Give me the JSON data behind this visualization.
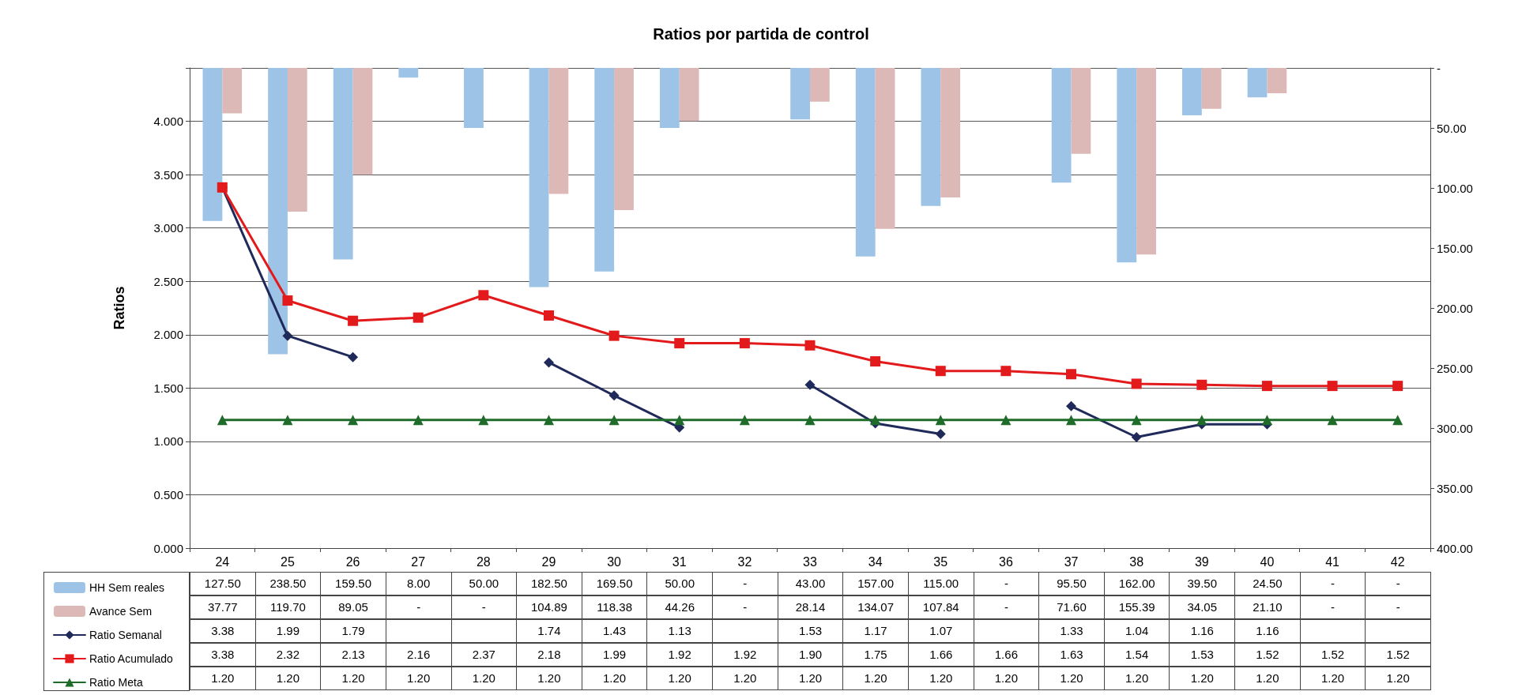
{
  "chart_data": {
    "type": "bar",
    "title": "Ratios por partida de control",
    "ylabel": "Ratios",
    "categories": [
      "24",
      "25",
      "26",
      "27",
      "28",
      "29",
      "30",
      "31",
      "32",
      "33",
      "34",
      "35",
      "36",
      "37",
      "38",
      "39",
      "40",
      "41",
      "42"
    ],
    "ylim": [
      0,
      4.5
    ],
    "yticks": [
      {
        "value": 0,
        "label": "0.000"
      },
      {
        "value": 0.5,
        "label": "0.500"
      },
      {
        "value": 1,
        "label": "1.000"
      },
      {
        "value": 1.5,
        "label": "1.500"
      },
      {
        "value": 2,
        "label": "2.000"
      },
      {
        "value": 2.5,
        "label": "2.500"
      },
      {
        "value": 3,
        "label": "3.000"
      },
      {
        "value": 3.5,
        "label": "3.500"
      },
      {
        "value": 4,
        "label": "4.000"
      },
      {
        "value": 4.5,
        "label": null
      }
    ],
    "y2lim": [
      400,
      0
    ],
    "y2ticks": [
      {
        "value": 0,
        "label": "-"
      },
      {
        "value": 50,
        "label": "50.00"
      },
      {
        "value": 100,
        "label": "100.00"
      },
      {
        "value": 150,
        "label": "150.00"
      },
      {
        "value": 200,
        "label": "200.00"
      },
      {
        "value": 250,
        "label": "250.00"
      },
      {
        "value": 300,
        "label": "300.00"
      },
      {
        "value": 350,
        "label": "350.00"
      },
      {
        "value": 400,
        "label": "400.00"
      }
    ],
    "grid": "y",
    "legend": "bottom",
    "series": [
      {
        "name": "HH Sem reales",
        "axis": "y2",
        "color": "#9dc3e6",
        "values": [
          127.5,
          238.5,
          159.5,
          8,
          50,
          182.5,
          169.5,
          50,
          0,
          43,
          157,
          115,
          0,
          95.5,
          162,
          39.5,
          24.5,
          0,
          0
        ],
        "value_labels": [
          "127.50",
          "238.50",
          "159.50",
          "8.00",
          "50.00",
          "182.50",
          "169.50",
          "50.00",
          "-",
          "43.00",
          "157.00",
          "115.00",
          "-",
          "95.50",
          "162.00",
          "39.50",
          "24.50",
          "-",
          "-"
        ]
      },
      {
        "name": "Avance Sem",
        "axis": "y2",
        "color": "#dcb8b6",
        "values": [
          37.77,
          119.7,
          89.05,
          0,
          0,
          104.89,
          118.38,
          44.26,
          0,
          28.14,
          134.07,
          107.84,
          0,
          71.6,
          155.39,
          34.05,
          21.1,
          0,
          0
        ],
        "value_labels": [
          "37.77",
          "119.70",
          "89.05",
          "-",
          "-",
          "104.89",
          "118.38",
          "44.26",
          "-",
          "28.14",
          "134.07",
          "107.84",
          "-",
          "71.60",
          "155.39",
          "34.05",
          "21.10",
          "-",
          "-"
        ]
      },
      {
        "name": "Ratio Semanal",
        "type": "line",
        "marker": "diamond",
        "color": "#1f2a5a",
        "values": [
          3.38,
          1.99,
          1.79,
          null,
          null,
          1.74,
          1.43,
          1.13,
          null,
          1.53,
          1.17,
          1.07,
          null,
          1.33,
          1.04,
          1.16,
          1.16,
          null,
          null
        ],
        "value_labels": [
          "3.38",
          "1.99",
          "1.79",
          null,
          null,
          "1.74",
          "1.43",
          "1.13",
          null,
          "1.53",
          "1.17",
          "1.07",
          null,
          "1.33",
          "1.04",
          "1.16",
          "1.16",
          null,
          null
        ]
      },
      {
        "name": "Ratio Acumulado",
        "type": "line",
        "marker": "square",
        "color": "#e31a1c",
        "values": [
          3.38,
          2.32,
          2.13,
          2.16,
          2.37,
          2.18,
          1.99,
          1.92,
          1.92,
          1.9,
          1.75,
          1.66,
          1.66,
          1.63,
          1.54,
          1.53,
          1.52,
          1.52,
          1.52
        ],
        "value_labels": [
          "3.38",
          "2.32",
          "2.13",
          "2.16",
          "2.37",
          "2.18",
          "1.99",
          "1.92",
          "1.92",
          "1.90",
          "1.75",
          "1.66",
          "1.66",
          "1.63",
          "1.54",
          "1.53",
          "1.52",
          "1.52",
          "1.52"
        ]
      },
      {
        "name": "Ratio Meta",
        "type": "line",
        "marker": "triangle",
        "color": "#1e6b2a",
        "values": [
          1.2,
          1.2,
          1.2,
          1.2,
          1.2,
          1.2,
          1.2,
          1.2,
          1.2,
          1.2,
          1.2,
          1.2,
          1.2,
          1.2,
          1.2,
          1.2,
          1.2,
          1.2,
          1.2
        ],
        "value_labels": [
          "1.20",
          "1.20",
          "1.20",
          "1.20",
          "1.20",
          "1.20",
          "1.20",
          "1.20",
          "1.20",
          "1.20",
          "1.20",
          "1.20",
          "1.20",
          "1.20",
          "1.20",
          "1.20",
          "1.20",
          "1.20",
          "1.20"
        ]
      }
    ]
  }
}
